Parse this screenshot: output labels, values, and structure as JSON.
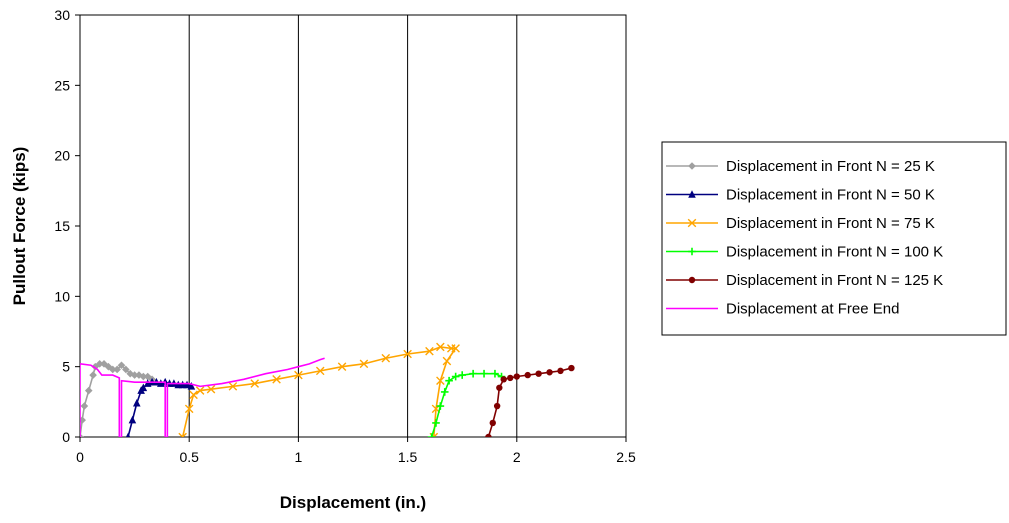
{
  "chart_data": {
    "type": "line",
    "xlabel": "Displacement (in.)",
    "ylabel": "Pullout Force (kips)",
    "xlim": [
      0,
      2.5
    ],
    "ylim": [
      0,
      30
    ],
    "x_ticks": [
      "0",
      "0.5",
      "1",
      "1.5",
      "2",
      "2.5"
    ],
    "y_ticks": [
      "0",
      "5",
      "10",
      "15",
      "20",
      "25",
      "30"
    ],
    "grid": "vertical major gridlines",
    "legend_position": "right",
    "series": [
      {
        "name": "Displacement in Front N = 25 K",
        "color": "#a0a0a0",
        "marker": "diamond",
        "points": [
          [
            0,
            0
          ],
          [
            0.01,
            1.2
          ],
          [
            0.02,
            2.2
          ],
          [
            0.04,
            3.3
          ],
          [
            0.06,
            4.4
          ],
          [
            0.07,
            5.0
          ],
          [
            0.09,
            5.2
          ],
          [
            0.11,
            5.2
          ],
          [
            0.13,
            5.0
          ],
          [
            0.15,
            4.8
          ],
          [
            0.17,
            4.8
          ],
          [
            0.19,
            5.1
          ],
          [
            0.21,
            4.8
          ],
          [
            0.23,
            4.5
          ],
          [
            0.25,
            4.4
          ],
          [
            0.27,
            4.4
          ],
          [
            0.29,
            4.3
          ],
          [
            0.31,
            4.3
          ],
          [
            0.33,
            4.1
          ]
        ]
      },
      {
        "name": "Displacement in Front N = 50 K",
        "color": "#000080",
        "marker": "triangle",
        "points": [
          [
            0.22,
            0
          ],
          [
            0.24,
            1.2
          ],
          [
            0.26,
            2.4
          ],
          [
            0.28,
            3.3
          ],
          [
            0.29,
            3.5
          ],
          [
            0.31,
            3.8
          ],
          [
            0.33,
            3.9
          ],
          [
            0.35,
            3.9
          ],
          [
            0.37,
            3.8
          ],
          [
            0.39,
            3.9
          ],
          [
            0.41,
            3.8
          ],
          [
            0.43,
            3.8
          ],
          [
            0.45,
            3.7
          ],
          [
            0.47,
            3.7
          ],
          [
            0.49,
            3.7
          ],
          [
            0.51,
            3.6
          ]
        ]
      },
      {
        "name": "Displacement in Front N = 75 K",
        "color": "#ffa500",
        "marker": "x",
        "points": [
          [
            0.47,
            0
          ],
          [
            0.5,
            2.0
          ],
          [
            0.52,
            3.0
          ],
          [
            0.55,
            3.3
          ],
          [
            0.6,
            3.4
          ],
          [
            0.7,
            3.6
          ],
          [
            0.8,
            3.8
          ],
          [
            0.9,
            4.1
          ],
          [
            1.0,
            4.4
          ],
          [
            1.1,
            4.7
          ],
          [
            1.2,
            5.0
          ],
          [
            1.3,
            5.2
          ],
          [
            1.4,
            5.6
          ],
          [
            1.5,
            5.9
          ],
          [
            1.6,
            6.1
          ],
          [
            1.65,
            6.4
          ],
          [
            1.7,
            6.3
          ],
          [
            1.72,
            6.3
          ],
          [
            1.68,
            5.4
          ],
          [
            1.65,
            4.0
          ],
          [
            1.63,
            2.0
          ],
          [
            1.62,
            0
          ]
        ]
      },
      {
        "name": "Displacement in Front N = 100 K",
        "color": "#00ff00",
        "marker": "plus",
        "points": [
          [
            1.61,
            0
          ],
          [
            1.63,
            1.0
          ],
          [
            1.65,
            2.2
          ],
          [
            1.67,
            3.2
          ],
          [
            1.69,
            4.0
          ],
          [
            1.72,
            4.3
          ],
          [
            1.75,
            4.4
          ],
          [
            1.8,
            4.5
          ],
          [
            1.85,
            4.5
          ],
          [
            1.9,
            4.5
          ],
          [
            1.93,
            4.3
          ]
        ]
      },
      {
        "name": "Displacement in Front N = 125 K",
        "color": "#800000",
        "marker": "circle",
        "points": [
          [
            1.87,
            0
          ],
          [
            1.89,
            1.0
          ],
          [
            1.91,
            2.2
          ],
          [
            1.92,
            3.5
          ],
          [
            1.94,
            4.1
          ],
          [
            1.97,
            4.2
          ],
          [
            2.0,
            4.3
          ],
          [
            2.05,
            4.4
          ],
          [
            2.1,
            4.5
          ],
          [
            2.15,
            4.6
          ],
          [
            2.2,
            4.7
          ],
          [
            2.25,
            4.9
          ]
        ]
      },
      {
        "name": "Displacement at Free End",
        "color": "#ff00ff",
        "marker": "none",
        "points": [
          [
            0,
            0
          ],
          [
            0,
            5.2
          ],
          [
            0.05,
            5.1
          ],
          [
            0.08,
            4.8
          ],
          [
            0.1,
            4.4
          ],
          [
            0.15,
            4.4
          ],
          [
            0.18,
            4.2
          ],
          [
            0.18,
            0
          ],
          [
            0.19,
            0
          ],
          [
            0.19,
            4.0
          ],
          [
            0.25,
            3.9
          ],
          [
            0.35,
            3.9
          ],
          [
            0.39,
            3.9
          ],
          [
            0.39,
            0
          ],
          [
            0.4,
            0
          ],
          [
            0.4,
            3.8
          ],
          [
            0.5,
            3.8
          ],
          [
            0.55,
            3.6
          ],
          [
            0.65,
            3.8
          ],
          [
            0.75,
            4.1
          ],
          [
            0.85,
            4.5
          ],
          [
            0.95,
            4.8
          ],
          [
            1.0,
            5.0
          ],
          [
            1.05,
            5.2
          ],
          [
            1.1,
            5.5
          ],
          [
            1.12,
            5.6
          ]
        ]
      }
    ]
  }
}
